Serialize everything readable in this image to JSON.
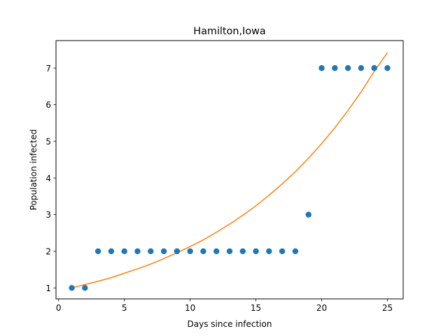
{
  "chart_data": {
    "type": "scatter",
    "title": "Hamilton,Iowa",
    "xlabel": "Days since infection",
    "ylabel": "Population infected",
    "xlim": [
      -0.2,
      26.2
    ],
    "ylim": [
      0.7,
      7.75
    ],
    "xticks": [
      0,
      5,
      10,
      15,
      20,
      25
    ],
    "yticks": [
      1,
      2,
      3,
      4,
      5,
      6,
      7
    ],
    "grid": false,
    "series": [
      {
        "kind": "scatter",
        "color": "#1f77b4",
        "x": [
          1,
          2,
          3,
          4,
          5,
          6,
          7,
          8,
          9,
          10,
          11,
          12,
          13,
          14,
          15,
          16,
          17,
          18,
          19,
          20,
          21,
          22,
          23,
          24,
          25
        ],
        "y": [
          1,
          1,
          2,
          2,
          2,
          2,
          2,
          2,
          2,
          2,
          2,
          2,
          2,
          2,
          2,
          2,
          2,
          2,
          3,
          7,
          7,
          7,
          7,
          7,
          7
        ]
      },
      {
        "kind": "line",
        "color": "#ff7f0e",
        "x": [
          1,
          2,
          3,
          4,
          5,
          6,
          7,
          8,
          9,
          10,
          11,
          12,
          13,
          14,
          15,
          16,
          17,
          18,
          19,
          20,
          21,
          22,
          23,
          24,
          25
        ],
        "y": [
          1.0,
          1.09,
          1.18,
          1.28,
          1.4,
          1.52,
          1.65,
          1.8,
          1.96,
          2.13,
          2.31,
          2.52,
          2.74,
          2.98,
          3.24,
          3.53,
          3.84,
          4.17,
          4.54,
          4.94,
          5.37,
          5.84,
          6.35,
          6.91,
          7.42
        ]
      }
    ]
  }
}
